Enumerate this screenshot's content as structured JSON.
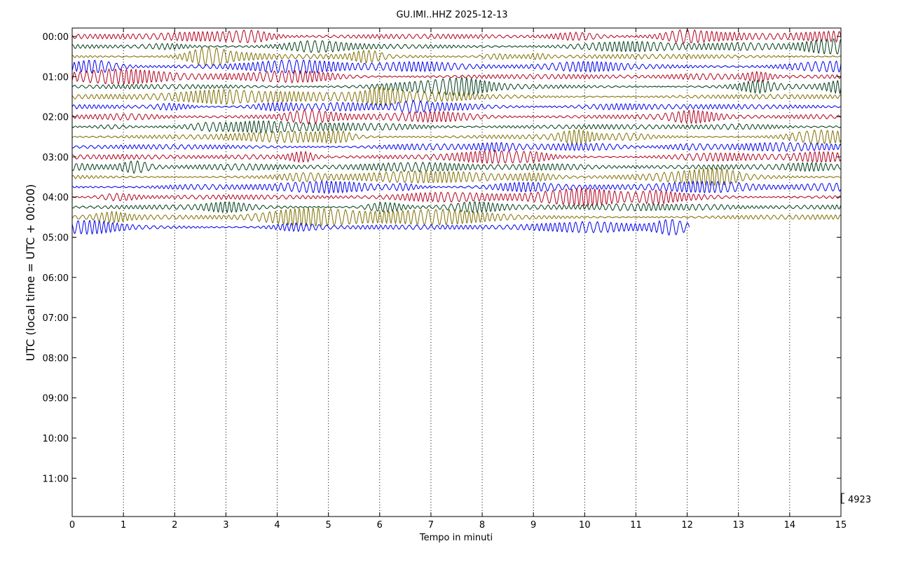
{
  "chart_data": {
    "type": "line",
    "title": "GU.IMI..HHZ 2025-12-13",
    "xlabel": "Tempo in minuti",
    "ylabel": "UTC (local time = UTC + 00:00)",
    "xlim": [
      0,
      15
    ],
    "x_ticks": [
      "0",
      "1",
      "2",
      "3",
      "4",
      "5",
      "6",
      "7",
      "8",
      "9",
      "10",
      "11",
      "12",
      "13",
      "14",
      "15"
    ],
    "y_ticks": [
      "00:00",
      "01:00",
      "02:00",
      "03:00",
      "04:00",
      "05:00",
      "06:00",
      "07:00",
      "08:00",
      "09:00",
      "10:00",
      "11:00"
    ],
    "grid": "vertical dotted",
    "scale_label": "4923",
    "trace_colors": [
      "#b2001f",
      "#003d1a",
      "#7f6f00",
      "#0000ee"
    ],
    "traces": [
      {
        "start": "00:00",
        "end_min": 15
      },
      {
        "start": "00:15",
        "end_min": 15
      },
      {
        "start": "00:30",
        "end_min": 15
      },
      {
        "start": "00:45",
        "end_min": 15
      },
      {
        "start": "01:00",
        "end_min": 15
      },
      {
        "start": "01:15",
        "end_min": 15
      },
      {
        "start": "01:30",
        "end_min": 15
      },
      {
        "start": "01:45",
        "end_min": 15
      },
      {
        "start": "02:00",
        "end_min": 15
      },
      {
        "start": "02:15",
        "end_min": 15
      },
      {
        "start": "02:30",
        "end_min": 15
      },
      {
        "start": "02:45",
        "end_min": 15
      },
      {
        "start": "03:00",
        "end_min": 15
      },
      {
        "start": "03:15",
        "end_min": 15
      },
      {
        "start": "03:30",
        "end_min": 15
      },
      {
        "start": "03:45",
        "end_min": 15
      },
      {
        "start": "04:00",
        "end_min": 15
      },
      {
        "start": "04:15",
        "end_min": 15
      },
      {
        "start": "04:30",
        "end_min": 15
      },
      {
        "start": "04:45",
        "end_min": 12.05
      }
    ]
  }
}
